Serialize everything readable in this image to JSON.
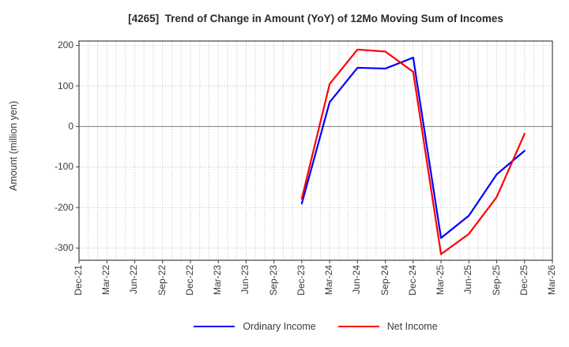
{
  "chart_data": {
    "type": "line",
    "title": "[4265]  Trend of Change in Amount (YoY) of 12Mo Moving Sum of Incomes",
    "ylabel": "Amount (million yen)",
    "x_tick_labels": [
      "Dec-21",
      "Mar-22",
      "Jun-22",
      "Sep-22",
      "Dec-22",
      "Mar-23",
      "Jun-23",
      "Sep-23",
      "Dec-23",
      "Mar-24",
      "Jun-24",
      "Sep-24",
      "Dec-24",
      "Mar-25",
      "Jun-25",
      "Sep-25",
      "Dec-25",
      "Mar-26"
    ],
    "x_tick_step_months": 3,
    "x_total_months": 51,
    "y_ticks": [
      200,
      100,
      0,
      -100,
      -200,
      -300
    ],
    "ylim": [
      -330,
      211
    ],
    "grid": true,
    "legend_position": "bottom-center",
    "colors": {
      "ordinary_income": "#0000ff",
      "net_income": "#ff0000",
      "gridline": "#b9b9b9",
      "zero_line": "#8c8c8c",
      "spine": "#444444"
    },
    "series": [
      {
        "name": "Ordinary Income",
        "color": "#0000ff",
        "start_month": 24,
        "step_months": 3,
        "x_labels": [
          "Dec-23",
          "Mar-24",
          "Jun-24",
          "Sep-24",
          "Dec-24",
          "Mar-25",
          "Jun-25",
          "Sep-25",
          "Dec-25"
        ],
        "values": [
          -190,
          60,
          145,
          143,
          170,
          -275,
          -220,
          -118,
          -60
        ]
      },
      {
        "name": "Net Income",
        "color": "#ff0000",
        "start_month": 24,
        "step_months": 3,
        "x_labels": [
          "Dec-23",
          "Mar-24",
          "Jun-24",
          "Sep-24",
          "Dec-24",
          "Mar-25",
          "Jun-25",
          "Sep-25",
          "Dec-25"
        ],
        "values": [
          -178,
          105,
          190,
          185,
          135,
          -315,
          -265,
          -174,
          -18
        ]
      }
    ]
  }
}
